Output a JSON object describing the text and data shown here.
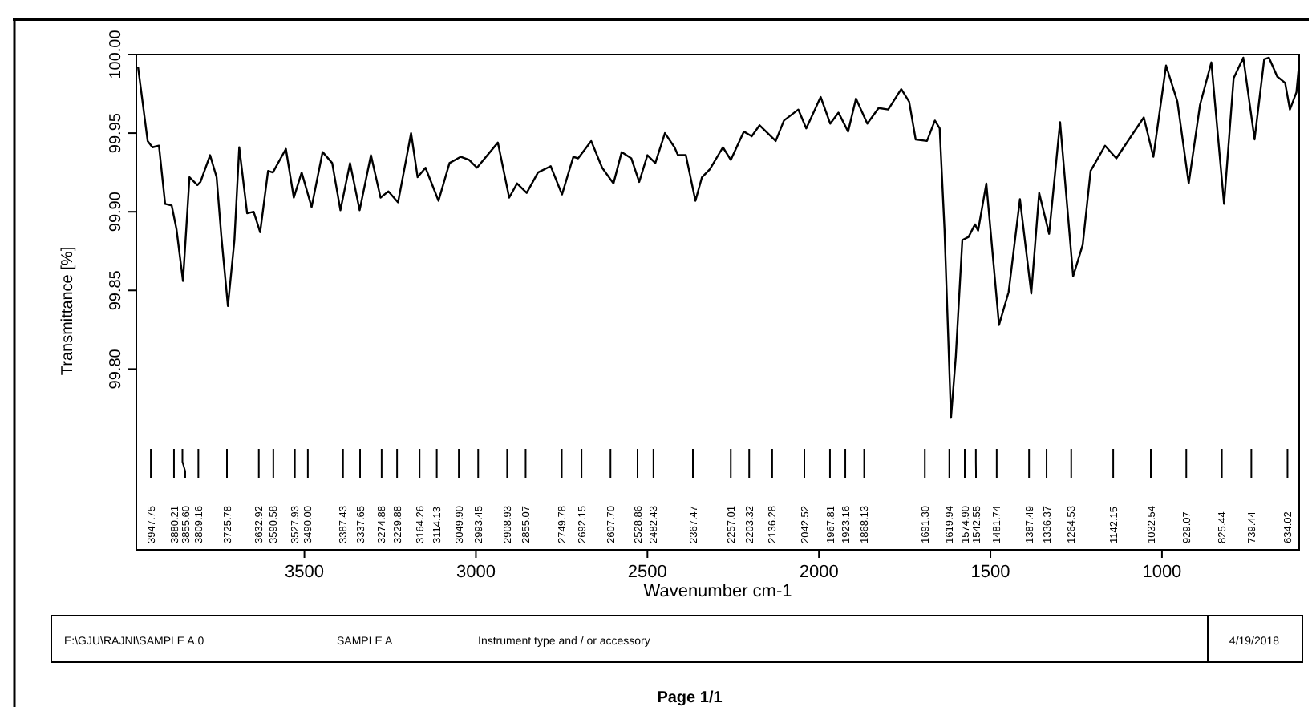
{
  "chart_data": {
    "type": "line",
    "ylabel": "Transmittance [%]",
    "xlabel": "Wavenumber cm-1",
    "color": "#000000",
    "xlim": [
      3990,
      600
    ],
    "xticks": [
      3500,
      3000,
      2500,
      2000,
      1500,
      1000
    ],
    "ylim": [
      99.685,
      100.0
    ],
    "yticks": [
      {
        "value": 100.0,
        "label": "100.00"
      },
      {
        "value": 99.95,
        "label": "99.95"
      },
      {
        "value": 99.9,
        "label": "99.90"
      },
      {
        "value": 99.85,
        "label": "99.85"
      },
      {
        "value": 99.8,
        "label": "99.80"
      }
    ],
    "grid": false,
    "x": [
      3985,
      3957,
      3943,
      3924,
      3906,
      3887,
      3873,
      3854,
      3835,
      3812,
      3803,
      3775,
      3756,
      3742,
      3723,
      3704,
      3690,
      3667,
      3648,
      3629,
      3606,
      3592,
      3554,
      3531,
      3508,
      3479,
      3447,
      3419,
      3395,
      3367,
      3339,
      3306,
      3278,
      3255,
      3227,
      3189,
      3170,
      3147,
      3109,
      3077,
      3044,
      3020,
      2997,
      2936,
      2903,
      2880,
      2852,
      2819,
      2782,
      2749,
      2716,
      2702,
      2664,
      2632,
      2599,
      2575,
      2547,
      2524,
      2500,
      2477,
      2449,
      2421,
      2411,
      2388,
      2360,
      2341,
      2318,
      2280,
      2257,
      2219,
      2196,
      2173,
      2126,
      2102,
      2060,
      2037,
      1995,
      1967,
      1943,
      1915,
      1892,
      1859,
      1826,
      1798,
      1760,
      1737,
      1718,
      1685,
      1662,
      1648,
      1634,
      1615,
      1601,
      1582,
      1564,
      1545,
      1536,
      1512,
      1475,
      1447,
      1414,
      1381,
      1358,
      1329,
      1297,
      1259,
      1231,
      1208,
      1166,
      1133,
      1053,
      1025,
      988,
      955,
      922,
      889,
      856,
      819,
      791,
      763,
      730,
      702,
      688,
      664,
      641,
      627,
      608,
      601
    ],
    "values": [
      99.992,
      99.945,
      99.941,
      99.942,
      99.905,
      99.904,
      99.889,
      99.856,
      99.922,
      99.917,
      99.919,
      99.936,
      99.922,
      99.884,
      99.84,
      99.882,
      99.941,
      99.899,
      99.9,
      99.887,
      99.926,
      99.925,
      99.94,
      99.909,
      99.925,
      99.903,
      99.938,
      99.931,
      99.901,
      99.931,
      99.901,
      99.936,
      99.909,
      99.913,
      99.906,
      99.95,
      99.922,
      99.928,
      99.907,
      99.931,
      99.935,
      99.933,
      99.928,
      99.944,
      99.909,
      99.918,
      99.912,
      99.925,
      99.929,
      99.911,
      99.935,
      99.934,
      99.945,
      99.928,
      99.918,
      99.938,
      99.934,
      99.919,
      99.936,
      99.931,
      99.95,
      99.941,
      99.936,
      99.936,
      99.907,
      99.922,
      99.927,
      99.941,
      99.933,
      99.951,
      99.948,
      99.955,
      99.945,
      99.958,
      99.965,
      99.953,
      99.973,
      99.956,
      99.963,
      99.951,
      99.972,
      99.956,
      99.966,
      99.965,
      99.978,
      99.97,
      99.946,
      99.945,
      99.958,
      99.953,
      99.889,
      99.769,
      99.808,
      99.882,
      99.884,
      99.892,
      99.888,
      99.918,
      99.828,
      99.849,
      99.908,
      99.848,
      99.912,
      99.886,
      99.957,
      99.859,
      99.879,
      99.926,
      99.942,
      99.934,
      99.96,
      99.935,
      99.993,
      99.97,
      99.918,
      99.968,
      99.995,
      99.905,
      99.985,
      99.998,
      99.946,
      99.997,
      99.998,
      99.986,
      99.982,
      99.965,
      99.976,
      99.992
    ],
    "x2lim": [
      3990,
      600
    ],
    "x2ticks": [
      {
        "value": 3947.75,
        "label": "3947.75"
      },
      {
        "value": 3880.21,
        "label": "3880.21"
      },
      {
        "value": 3855.6,
        "label": "3855.60"
      },
      {
        "value": 3809.16,
        "label": "3809.16"
      },
      {
        "value": 3725.78,
        "label": "3725.78"
      },
      {
        "value": 3632.92,
        "label": "3632.92"
      },
      {
        "value": 3590.58,
        "label": "3590.58"
      },
      {
        "value": 3527.93,
        "label": "3527.93"
      },
      {
        "value": 3490.0,
        "label": "3490.00"
      },
      {
        "value": 3387.43,
        "label": "3387.43"
      },
      {
        "value": 3337.65,
        "label": "3337.65"
      },
      {
        "value": 3274.88,
        "label": "3274.88"
      },
      {
        "value": 3229.88,
        "label": "3229.88"
      },
      {
        "value": 3164.26,
        "label": "3164.26"
      },
      {
        "value": 3114.13,
        "label": "3114.13"
      },
      {
        "value": 3049.9,
        "label": "3049.90"
      },
      {
        "value": 2993.45,
        "label": "2993.45"
      },
      {
        "value": 2908.93,
        "label": "2908.93"
      },
      {
        "value": 2855.07,
        "label": "2855.07"
      },
      {
        "value": 2749.78,
        "label": "2749.78"
      },
      {
        "value": 2692.15,
        "label": "2692.15"
      },
      {
        "value": 2607.7,
        "label": "2607.70"
      },
      {
        "value": 2528.86,
        "label": "2528.86"
      },
      {
        "value": 2482.43,
        "label": "2482.43"
      },
      {
        "value": 2367.47,
        "label": "2367.47"
      },
      {
        "value": 2257.01,
        "label": "2257.01"
      },
      {
        "value": 2203.32,
        "label": "2203.32"
      },
      {
        "value": 2136.28,
        "label": "2136.28"
      },
      {
        "value": 2042.52,
        "label": "2042.52"
      },
      {
        "value": 1967.81,
        "label": "1967.81"
      },
      {
        "value": 1923.16,
        "label": "1923.16"
      },
      {
        "value": 1868.13,
        "label": "1868.13"
      },
      {
        "value": 1691.3,
        "label": "1691.30"
      },
      {
        "value": 1619.94,
        "label": "1619.94"
      },
      {
        "value": 1574.9,
        "label": "1574.90"
      },
      {
        "value": 1542.55,
        "label": "1542.55"
      },
      {
        "value": 1481.74,
        "label": "1481.74"
      },
      {
        "value": 1387.49,
        "label": "1387.49"
      },
      {
        "value": 1336.37,
        "label": "1336.37"
      },
      {
        "value": 1264.53,
        "label": "1264.53"
      },
      {
        "value": 1142.15,
        "label": "1142.15"
      },
      {
        "value": 1032.54,
        "label": "1032.54"
      },
      {
        "value": 929.07,
        "label": "929.07"
      },
      {
        "value": 825.44,
        "label": "825.44"
      },
      {
        "value": 739.44,
        "label": "739.44"
      },
      {
        "value": 634.02,
        "label": "634.02"
      }
    ],
    "annotations": [
      "E:\\GJU\\RAJNI\\SAMPLE A.0",
      "SAMPLE A",
      "Instrument type and / or accessory",
      "4/19/2018",
      "Page 1/1"
    ]
  }
}
